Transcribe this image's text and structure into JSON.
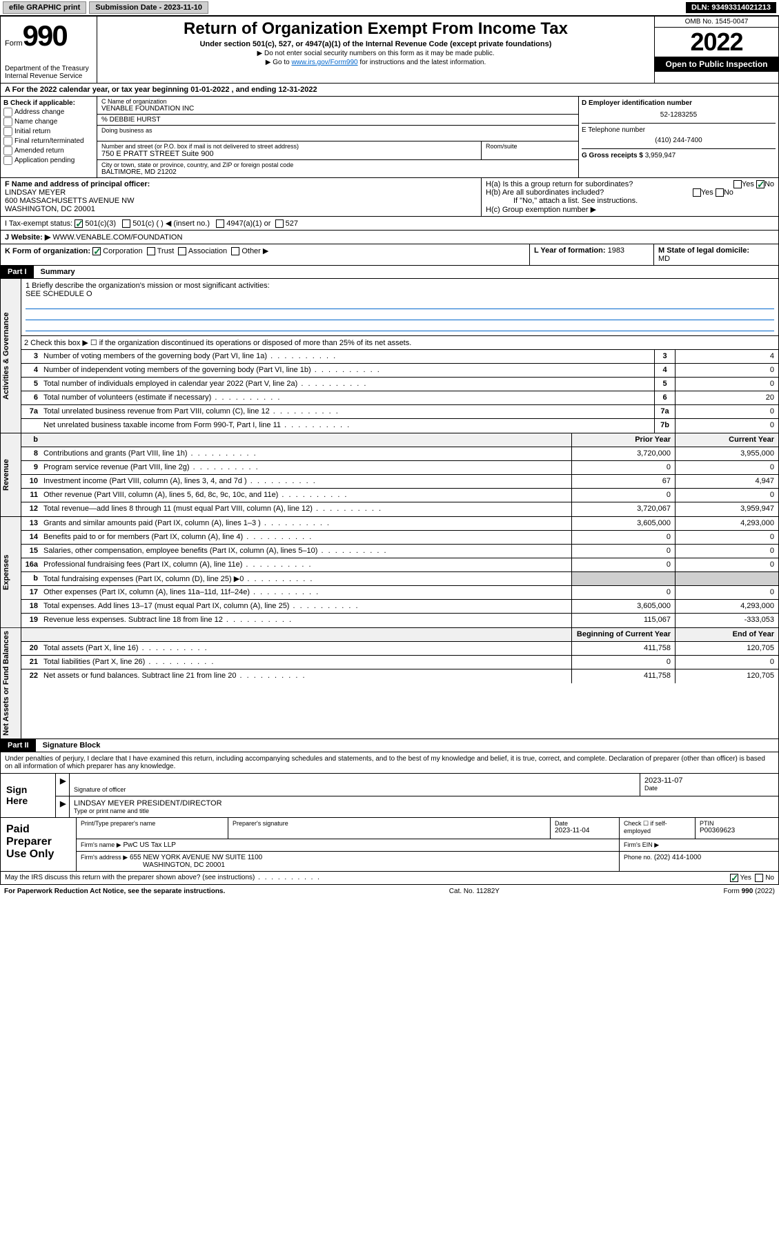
{
  "topbar": {
    "efile": "efile GRAPHIC print",
    "subdate_lbl": "Submission Date - 2023-11-10",
    "dln": "DLN: 93493314021213"
  },
  "header": {
    "form_prefix": "Form",
    "form_no": "990",
    "dept": "Department of the Treasury",
    "irs": "Internal Revenue Service",
    "title": "Return of Organization Exempt From Income Tax",
    "sub1": "Under section 501(c), 527, or 4947(a)(1) of the Internal Revenue Code (except private foundations)",
    "sub2": "▶ Do not enter social security numbers on this form as it may be made public.",
    "sub3_pre": "▶ Go to ",
    "sub3_link": "www.irs.gov/Form990",
    "sub3_post": " for instructions and the latest information.",
    "omb": "OMB No. 1545-0047",
    "year": "2022",
    "open": "Open to Public Inspection"
  },
  "taxyear": {
    "a": "A For the 2022 calendar year, or tax year beginning ",
    "begin": "01-01-2022",
    "mid": " , and ending ",
    "end": "12-31-2022"
  },
  "B": {
    "lbl": "B Check if applicable:",
    "items": [
      "Address change",
      "Name change",
      "Initial return",
      "Final return/terminated",
      "Amended return",
      "Application pending"
    ]
  },
  "C": {
    "name_lbl": "C Name of organization",
    "name": "VENABLE FOUNDATION INC",
    "care": "% DEBBIE HURST",
    "dba_lbl": "Doing business as",
    "street_lbl": "Number and street (or P.O. box if mail is not delivered to street address)",
    "room_lbl": "Room/suite",
    "street": "750 E PRATT STREET Suite 900",
    "city_lbl": "City or town, state or province, country, and ZIP or foreign postal code",
    "city": "BALTIMORE, MD  21202"
  },
  "D": {
    "lbl": "D Employer identification number",
    "val": "52-1283255"
  },
  "E": {
    "lbl": "E Telephone number",
    "val": "(410) 244-7400"
  },
  "G": {
    "lbl": "G Gross receipts $",
    "val": "3,959,947"
  },
  "F": {
    "lbl": "F Name and address of principal officer:",
    "name": "LINDSAY MEYER",
    "addr1": "600 MASSACHUSETTS AVENUE NW",
    "addr2": "WASHINGTON, DC  20001"
  },
  "H": {
    "a": "H(a)  Is this a group return for subordinates?",
    "a_yes": "Yes",
    "a_no": "No",
    "b": "H(b)  Are all subordinates included?",
    "b_note": "If \"No,\" attach a list. See instructions.",
    "c": "H(c)  Group exemption number ▶"
  },
  "I": {
    "lbl": "I    Tax-exempt status:",
    "o1": "501(c)(3)",
    "o2": "501(c) (  ) ◀ (insert no.)",
    "o3": "4947(a)(1) or",
    "o4": "527"
  },
  "J": {
    "lbl": "J    Website: ▶",
    "val": "WWW.VENABLE.COM/FOUNDATION"
  },
  "K": {
    "lbl": "K Form of organization:",
    "o1": "Corporation",
    "o2": "Trust",
    "o3": "Association",
    "o4": "Other ▶"
  },
  "L": {
    "lbl": "L Year of formation:",
    "val": "1983"
  },
  "M": {
    "lbl": "M State of legal domicile:",
    "val": "MD"
  },
  "partI": {
    "num": "Part I",
    "title": "Summary"
  },
  "gov": {
    "label": "Activities & Governance",
    "l1": "1   Briefly describe the organization's mission or most significant activities:",
    "l1v": "SEE SCHEDULE O",
    "l2": "2   Check this box ▶ ☐  if the organization discontinued its operations or disposed of more than 25% of its net assets.",
    "rows": [
      {
        "n": "3",
        "t": "Number of voting members of the governing body (Part VI, line 1a)",
        "b": "3",
        "v": "4"
      },
      {
        "n": "4",
        "t": "Number of independent voting members of the governing body (Part VI, line 1b)",
        "b": "4",
        "v": "0"
      },
      {
        "n": "5",
        "t": "Total number of individuals employed in calendar year 2022 (Part V, line 2a)",
        "b": "5",
        "v": "0"
      },
      {
        "n": "6",
        "t": "Total number of volunteers (estimate if necessary)",
        "b": "6",
        "v": "20"
      },
      {
        "n": "7a",
        "t": "Total unrelated business revenue from Part VIII, column (C), line 12",
        "b": "7a",
        "v": "0"
      },
      {
        "n": "",
        "t": "Net unrelated business taxable income from Form 990-T, Part I, line 11",
        "b": "7b",
        "v": "0"
      }
    ]
  },
  "cols": {
    "b": "b",
    "py": "Prior Year",
    "cy": "Current Year",
    "boc": "Beginning of Current Year",
    "eoy": "End of Year"
  },
  "rev": {
    "label": "Revenue",
    "rows": [
      {
        "n": "8",
        "t": "Contributions and grants (Part VIII, line 1h)",
        "py": "3,720,000",
        "cy": "3,955,000"
      },
      {
        "n": "9",
        "t": "Program service revenue (Part VIII, line 2g)",
        "py": "0",
        "cy": "0"
      },
      {
        "n": "10",
        "t": "Investment income (Part VIII, column (A), lines 3, 4, and 7d )",
        "py": "67",
        "cy": "4,947"
      },
      {
        "n": "11",
        "t": "Other revenue (Part VIII, column (A), lines 5, 6d, 8c, 9c, 10c, and 11e)",
        "py": "0",
        "cy": "0"
      },
      {
        "n": "12",
        "t": "Total revenue—add lines 8 through 11 (must equal Part VIII, column (A), line 12)",
        "py": "3,720,067",
        "cy": "3,959,947"
      }
    ]
  },
  "exp": {
    "label": "Expenses",
    "rows": [
      {
        "n": "13",
        "t": "Grants and similar amounts paid (Part IX, column (A), lines 1–3 )",
        "py": "3,605,000",
        "cy": "4,293,000"
      },
      {
        "n": "14",
        "t": "Benefits paid to or for members (Part IX, column (A), line 4)",
        "py": "0",
        "cy": "0"
      },
      {
        "n": "15",
        "t": "Salaries, other compensation, employee benefits (Part IX, column (A), lines 5–10)",
        "py": "0",
        "cy": "0"
      },
      {
        "n": "16a",
        "t": "Professional fundraising fees (Part IX, column (A), line 11e)",
        "py": "0",
        "cy": "0"
      },
      {
        "n": "b",
        "t": "Total fundraising expenses (Part IX, column (D), line 25) ▶0",
        "py": "",
        "cy": "",
        "gray": true
      },
      {
        "n": "17",
        "t": "Other expenses (Part IX, column (A), lines 11a–11d, 11f–24e)",
        "py": "0",
        "cy": "0"
      },
      {
        "n": "18",
        "t": "Total expenses. Add lines 13–17 (must equal Part IX, column (A), line 25)",
        "py": "3,605,000",
        "cy": "4,293,000"
      },
      {
        "n": "19",
        "t": "Revenue less expenses. Subtract line 18 from line 12",
        "py": "115,067",
        "cy": "-333,053"
      }
    ]
  },
  "net": {
    "label": "Net Assets or Fund Balances",
    "rows": [
      {
        "n": "20",
        "t": "Total assets (Part X, line 16)",
        "py": "411,758",
        "cy": "120,705"
      },
      {
        "n": "21",
        "t": "Total liabilities (Part X, line 26)",
        "py": "0",
        "cy": "0"
      },
      {
        "n": "22",
        "t": "Net assets or fund balances. Subtract line 21 from line 20",
        "py": "411,758",
        "cy": "120,705"
      }
    ]
  },
  "partII": {
    "num": "Part II",
    "title": "Signature Block"
  },
  "perjury": "Under penalties of perjury, I declare that I have examined this return, including accompanying schedules and statements, and to the best of my knowledge and belief, it is true, correct, and complete. Declaration of preparer (other than officer) is based on all information of which preparer has any knowledge.",
  "sign": {
    "here": "Sign Here",
    "sig_lbl": "Signature of officer",
    "date": "2023-11-07",
    "date_lbl": "Date",
    "name": "LINDSAY MEYER  PRESIDENT/DIRECTOR",
    "name_lbl": "Type or print name and title"
  },
  "paid": {
    "title": "Paid Preparer Use Only",
    "h1": "Print/Type preparer's name",
    "h2": "Preparer's signature",
    "h3": "Date",
    "h3v": "2023-11-04",
    "h4": "Check ☐ if self-employed",
    "h5": "PTIN",
    "h5v": "P00369623",
    "firm_lbl": "Firm's name    ▶",
    "firm": "PwC US Tax LLP",
    "ein_lbl": "Firm's EIN ▶",
    "addr_lbl": "Firm's address ▶",
    "addr1": "655 NEW YORK AVENUE NW SUITE 1100",
    "addr2": "WASHINGTON, DC  20001",
    "phone_lbl": "Phone no.",
    "phone": "(202) 414-1000"
  },
  "discuss": {
    "t": "May the IRS discuss this return with the preparer shown above? (see instructions)",
    "yes": "Yes",
    "no": "No"
  },
  "footer": {
    "l": "For Paperwork Reduction Act Notice, see the separate instructions.",
    "c": "Cat. No. 11282Y",
    "r": "Form 990 (2022)"
  }
}
